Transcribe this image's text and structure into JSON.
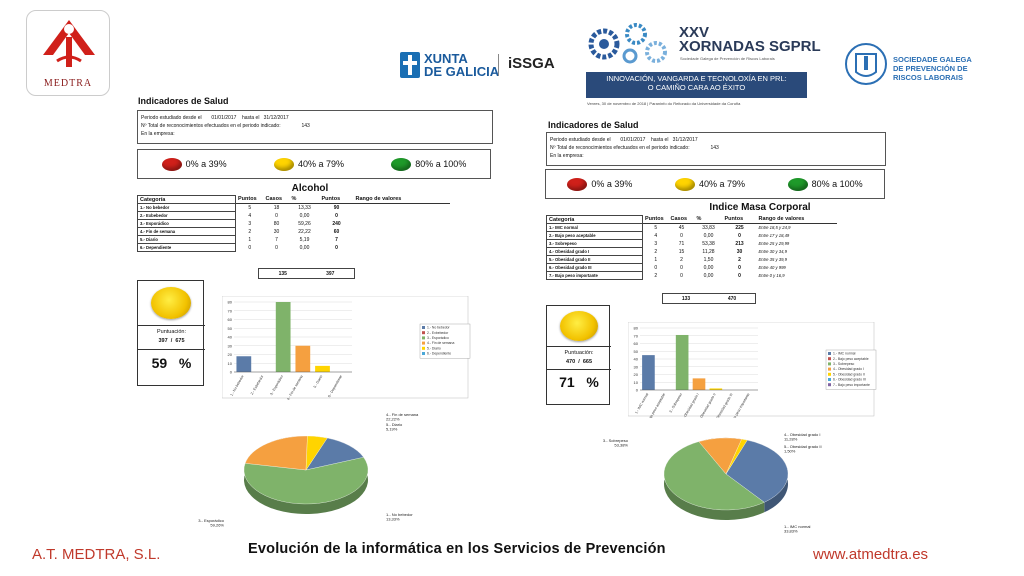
{
  "header": {
    "logo_text": "MEDTRA",
    "xunta_line1": "XUNTA",
    "xunta_line2": "DE GALICIA",
    "issga": "iSSGA",
    "event_xxv": "XXV",
    "event_name": "XORNADAS SGPRL",
    "event_sub": "Sociedade Galega de Prevención de Riscos Laborais",
    "banner_line1": "INNOVACIÓN, VANGARDA E TECNOLOXÍA EN PRL:",
    "banner_line2": "O CAMIÑO CARA AO ÉXITO",
    "event_date": "Venres, 30 de novembro de 2018  |  Paraninfo do Reitorado da Universidade da Coruña",
    "sgp_line1": "SOCIEDADE GALEGA",
    "sgp_line2": "DE PREVENCIÓN DE",
    "sgp_line3": "RISCOS LABORAIS"
  },
  "colors": {
    "red": "#d0201a",
    "yellow": "#ffd400",
    "green": "#1f9a2a",
    "blue": "#5b7ba8",
    "orange": "#f5a040",
    "olive": "#7fb36a",
    "accent": "#c0392b"
  },
  "legend": [
    "0% a 39%",
    "40% a 79%",
    "80% a 100%"
  ],
  "left": {
    "title": "Indicadores de Salud",
    "period_label": "Periodo estudiado desde el",
    "period_from": "01/01/2017",
    "period_to_label": "hasta el",
    "period_to": "31/12/2017",
    "total_label": "Nº Total de reconocimientos efectuados en el periodo indicado:",
    "total_value": "143",
    "company_label": "En la empresa:",
    "section": "Alcohol",
    "headers": [
      "Categoría",
      "Puntos",
      "Casos",
      "%",
      "Puntos",
      "Rango de valores"
    ],
    "rows": [
      [
        "1.- No bebedor",
        "5",
        "18",
        "13,33",
        "90"
      ],
      [
        "2.- Exbebedor",
        "4",
        "0",
        "0,00",
        "0"
      ],
      [
        "3.- Esporádico",
        "3",
        "80",
        "59,26",
        "240"
      ],
      [
        "4.- Fin de semana",
        "2",
        "30",
        "22,22",
        "60"
      ],
      [
        "5.- Diario",
        "1",
        "7",
        "5,19",
        "7"
      ],
      [
        "6.- Dependiente",
        "0",
        "0",
        "0,00",
        "0"
      ]
    ],
    "total_cases": "135",
    "total_points": "397",
    "score_label": "Puntuación:",
    "score": "397",
    "score_sep": "/",
    "score_max": "675",
    "percent": "59",
    "percent_sign": "%"
  },
  "right": {
    "title": "Indicadores de Salud",
    "period_label": "Periodo estudiado desde el",
    "period_from": "01/01/2017",
    "period_to_label": "hasta el",
    "period_to": "31/12/2017",
    "total_label": "Nº Total de reconocimientos efectuados en el periodo indicado:",
    "total_value": "143",
    "company_label": "En la empresa:",
    "section": "Indice Masa Corporal",
    "headers": [
      "Categoría",
      "Puntos",
      "Casos",
      "%",
      "Puntos",
      "Rango de valores"
    ],
    "rows": [
      [
        "1.- IMC normal",
        "5",
        "45",
        "33,83",
        "225",
        "Entre 18,5 y 24,9"
      ],
      [
        "2.- Bajo peso aceptable",
        "4",
        "0",
        "0,00",
        "0",
        "Entre 17 y 18,49"
      ],
      [
        "3.- Sobrepeso",
        "3",
        "71",
        "53,38",
        "213",
        "Entre 25 y 29,99"
      ],
      [
        "4.- Obesidad grado I",
        "2",
        "15",
        "11,28",
        "30",
        "Entre 30 y 34,9"
      ],
      [
        "5.- Obesidad grado II",
        "1",
        "2",
        "1,50",
        "2",
        "Entre 35 y 39,9"
      ],
      [
        "6.- Obesidad grado III",
        "0",
        "0",
        "0,00",
        "0",
        "Entre 40 y 999"
      ],
      [
        "7.- Bajo peso importante",
        "2",
        "0",
        "0,00",
        "0",
        "Entre 0 y 16,9"
      ]
    ],
    "total_cases": "133",
    "total_points": "470",
    "score_label": "Puntuación:",
    "score": "470",
    "score_sep": "/",
    "score_max": "665",
    "percent": "71",
    "percent_sign": "%"
  },
  "chart_data": [
    {
      "type": "bar",
      "categories": [
        "1.- No bebedor",
        "2.- Exbebedor",
        "3.- Esporádico",
        "4.- Fin de semana",
        "5.- Diario",
        "6.- Dependiente"
      ],
      "values": [
        18,
        0,
        80,
        30,
        7,
        0
      ],
      "colors": [
        "#5b7ba8",
        "#c0504d",
        "#7fb36a",
        "#f5a040",
        "#ffd400",
        "#4aa8d8"
      ],
      "ylim": [
        0,
        80
      ],
      "yticks": [
        0,
        10,
        20,
        30,
        40,
        50,
        60,
        70,
        80
      ],
      "legend": [
        "1.- No bebedor",
        "2.- Exbebedor",
        "3.- Esporádico",
        "4.- Fin de semana",
        "5.- Diario",
        "6.- Dependiente"
      ],
      "legend_position": "right"
    },
    {
      "type": "bar",
      "categories": [
        "1.- IMC normal",
        "2.- Bajo peso aceptable",
        "3.- Sobrepeso",
        "4.- Obesidad grado I",
        "5.- Obesidad grado II",
        "6.- Obesidad grado III",
        "7.- Bajo peso importante"
      ],
      "values": [
        45,
        0,
        71,
        15,
        2,
        0,
        0
      ],
      "colors": [
        "#5b7ba8",
        "#c0504d",
        "#7fb36a",
        "#f5a040",
        "#ffd400",
        "#4aa8d8",
        "#8064a2"
      ],
      "ylim": [
        0,
        80
      ],
      "yticks": [
        0,
        10,
        20,
        30,
        40,
        50,
        60,
        70,
        80
      ],
      "legend": [
        "1.- IMC normal",
        "2.- Bajo peso aceptable",
        "3.- Sobrepeso",
        "4.- Obesidad grado I",
        "5.- Obesidad grado II",
        "6.- Obesidad grado III",
        "7.- Bajo peso importante"
      ],
      "legend_position": "right"
    },
    {
      "type": "pie",
      "slices": [
        {
          "label": "1.- No bebedor",
          "pct": "13,33%",
          "value": 13.33,
          "color": "#5b7ba8"
        },
        {
          "label": "3.- Esporádico",
          "pct": "59,26%",
          "value": 59.26,
          "color": "#7fb36a"
        },
        {
          "label": "4.- Fin de semana",
          "pct": "22,22%",
          "value": 22.22,
          "color": "#f5a040"
        },
        {
          "label": "5.- Diario",
          "pct": "5,19%",
          "value": 5.19,
          "color": "#ffd400"
        }
      ]
    },
    {
      "type": "pie",
      "slices": [
        {
          "label": "1.- IMC normal",
          "pct": "33,83%",
          "value": 33.83,
          "color": "#5b7ba8"
        },
        {
          "label": "3.- Sobrepeso",
          "pct": "53,38%",
          "value": 53.38,
          "color": "#7fb36a"
        },
        {
          "label": "4.- Obesidad grado I",
          "pct": "11,28%",
          "value": 11.28,
          "color": "#f5a040"
        },
        {
          "label": "5.- Obesidad grado II",
          "pct": "1,50%",
          "value": 1.5,
          "color": "#ffd400"
        }
      ]
    }
  ],
  "footer": {
    "left": "A.T. MEDTRA, S.L.",
    "center": "Evolución de la informática en los Servicios de Prevención",
    "right": "www.atmedtra.es"
  }
}
